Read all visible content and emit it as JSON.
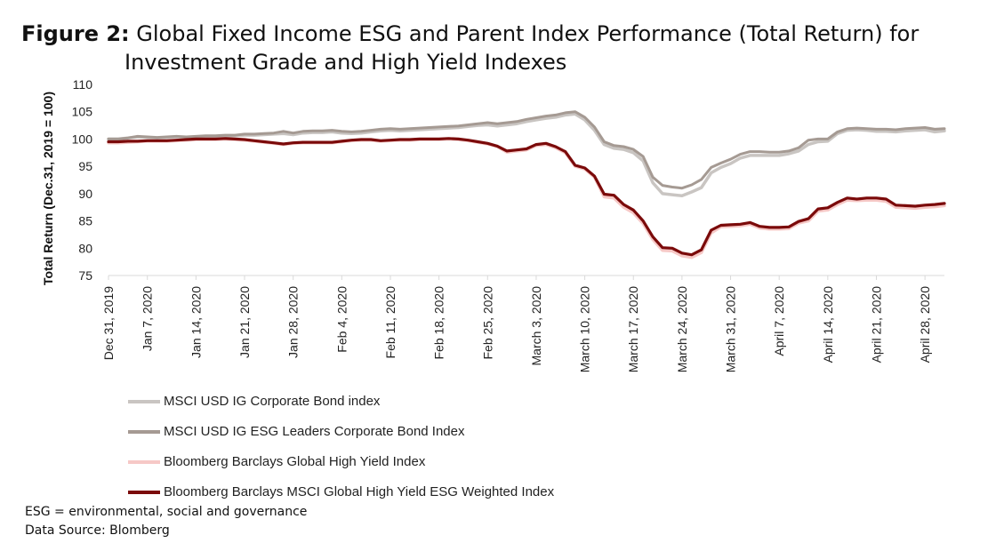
{
  "figure": {
    "label": "Figure 2:",
    "title_line1": " Global Fixed Income ESG and Parent Index Performance (Total Return) for",
    "title_line2": "Investment Grade and High Yield Indexes"
  },
  "footnotes": {
    "esg": "ESG = environmental, social and governance",
    "source": "Data Source: Blomberg"
  },
  "chart_data": {
    "type": "line",
    "ylabel": "Total Return (Dec.31, 2019 = 100)",
    "xlabel": "",
    "ylim": [
      75,
      110
    ],
    "yticks": [
      75,
      80,
      85,
      90,
      95,
      100,
      105,
      110
    ],
    "grid": false,
    "legend_position": "bottom-left",
    "x_tick_labels": [
      "Dec 31, 2019",
      "Jan 7, 2020",
      "Jan 14, 2020",
      "Jan 21, 2020",
      "Jan 28, 2020",
      "Feb 4, 2020",
      "Feb 11, 2020",
      "Feb 18, 2020",
      "Feb 25, 2020",
      "March 3, 2020",
      "March 10, 2020",
      "March 17, 2020",
      "March 24, 2020",
      "March 31, 2020",
      "April 7, 2020",
      "April 14, 2020",
      "April 21, 2020",
      "April 28, 2020"
    ],
    "x": [
      "Dec 31, 2019",
      "Jan 1, 2020",
      "Jan 3, 2020",
      "Jan 6, 2020",
      "Jan 7, 2020",
      "Jan 8, 2020",
      "Jan 9, 2020",
      "Jan 10, 2020",
      "Jan 13, 2020",
      "Jan 14, 2020",
      "Jan 15, 2020",
      "Jan 16, 2020",
      "Jan 17, 2020",
      "Jan 20, 2020",
      "Jan 21, 2020",
      "Jan 22, 2020",
      "Jan 23, 2020",
      "Jan 24, 2020",
      "Jan 27, 2020",
      "Jan 28, 2020",
      "Jan 29, 2020",
      "Jan 30, 2020",
      "Jan 31, 2020",
      "Feb 3, 2020",
      "Feb 4, 2020",
      "Feb 5, 2020",
      "Feb 6, 2020",
      "Feb 7, 2020",
      "Feb 10, 2020",
      "Feb 11, 2020",
      "Feb 12, 2020",
      "Feb 13, 2020",
      "Feb 14, 2020",
      "Feb 17, 2020",
      "Feb 18, 2020",
      "Feb 19, 2020",
      "Feb 20, 2020",
      "Feb 21, 2020",
      "Feb 24, 2020",
      "Feb 25, 2020",
      "Feb 26, 2020",
      "Feb 27, 2020",
      "Feb 28, 2020",
      "March 2, 2020",
      "March 3, 2020",
      "March 4, 2020",
      "March 5, 2020",
      "March 6, 2020",
      "March 9, 2020",
      "March 10, 2020",
      "March 11, 2020",
      "March 12, 2020",
      "March 13, 2020",
      "March 16, 2020",
      "March 17, 2020",
      "March 18, 2020",
      "March 19, 2020",
      "March 20, 2020",
      "March 23, 2020",
      "March 24, 2020",
      "March 25, 2020",
      "March 26, 2020",
      "March 27, 2020",
      "March 30, 2020",
      "March 31, 2020",
      "April 1, 2020",
      "April 2, 2020",
      "April 3, 2020",
      "April 6, 2020",
      "April 7, 2020",
      "April 8, 2020",
      "April 9, 2020",
      "April 10, 2020",
      "April 13, 2020",
      "April 14, 2020",
      "April 15, 2020",
      "April 16, 2020",
      "April 17, 2020",
      "April 20, 2020",
      "April 21, 2020",
      "April 22, 2020",
      "April 23, 2020",
      "April 24, 2020",
      "April 27, 2020",
      "April 28, 2020",
      "April 29, 2020",
      "April 30, 2020"
    ],
    "series": [
      {
        "name": "MSCI USD IG Corporate Bond index",
        "color": "#c9c5c2",
        "values": [
          100.0,
          100.0,
          100.2,
          100.4,
          100.3,
          100.2,
          100.3,
          100.4,
          100.3,
          100.4,
          100.5,
          100.5,
          100.6,
          100.6,
          100.7,
          100.7,
          100.8,
          100.9,
          101.0,
          100.8,
          101.1,
          101.2,
          101.2,
          101.3,
          101.1,
          101.0,
          101.1,
          101.3,
          101.5,
          101.6,
          101.5,
          101.6,
          101.7,
          101.8,
          101.9,
          102.0,
          102.1,
          102.3,
          102.5,
          102.6,
          102.4,
          102.6,
          102.8,
          103.2,
          103.5,
          103.8,
          104.0,
          104.4,
          104.6,
          103.5,
          101.6,
          99.0,
          98.3,
          98.1,
          97.5,
          96.0,
          92.0,
          90.0,
          89.8,
          89.6,
          90.3,
          91.1,
          93.8,
          94.8,
          95.5,
          96.5,
          97.0,
          97.0,
          97.0,
          97.0,
          97.3,
          97.8,
          99.0,
          99.5,
          99.6,
          101.0,
          101.6,
          101.7,
          101.6,
          101.4,
          101.4,
          101.3,
          101.5,
          101.6,
          101.7,
          101.3,
          101.5
        ]
      },
      {
        "name": "MSCI USD IG ESG Leaders Corporate Bond Index",
        "color": "#a59a93",
        "values": [
          100.0,
          100.0,
          100.2,
          100.5,
          100.4,
          100.3,
          100.4,
          100.5,
          100.4,
          100.5,
          100.6,
          100.6,
          100.7,
          100.7,
          100.9,
          100.9,
          101.0,
          101.1,
          101.4,
          101.1,
          101.4,
          101.5,
          101.5,
          101.6,
          101.4,
          101.3,
          101.4,
          101.6,
          101.8,
          101.9,
          101.8,
          101.9,
          102.0,
          102.1,
          102.2,
          102.3,
          102.4,
          102.6,
          102.8,
          103.0,
          102.8,
          103.0,
          103.2,
          103.6,
          103.9,
          104.2,
          104.4,
          104.8,
          105.0,
          104.0,
          102.2,
          99.5,
          98.8,
          98.6,
          98.1,
          96.8,
          93.0,
          91.5,
          91.2,
          91.0,
          91.6,
          92.6,
          94.8,
          95.6,
          96.3,
          97.2,
          97.7,
          97.7,
          97.6,
          97.6,
          97.8,
          98.4,
          99.8,
          100.0,
          100.0,
          101.3,
          101.9,
          102.0,
          101.9,
          101.8,
          101.8,
          101.7,
          101.9,
          102.0,
          102.1,
          101.8,
          101.9
        ]
      },
      {
        "name": "Bloomberg Barclays Global High Yield Index",
        "color": "#f6c8c6",
        "values": [
          99.3,
          99.3,
          99.4,
          99.5,
          99.6,
          99.6,
          99.6,
          99.7,
          99.8,
          99.9,
          99.9,
          99.9,
          100.0,
          99.9,
          99.8,
          99.6,
          99.4,
          99.2,
          99.0,
          99.2,
          99.3,
          99.3,
          99.3,
          99.3,
          99.5,
          99.7,
          99.8,
          99.8,
          99.6,
          99.7,
          99.8,
          99.8,
          99.9,
          99.9,
          99.9,
          100.0,
          99.9,
          99.7,
          99.4,
          99.1,
          98.6,
          97.6,
          97.8,
          98.0,
          98.8,
          99.0,
          98.4,
          97.5,
          95.0,
          94.5,
          93.0,
          89.4,
          89.2,
          87.5,
          86.5,
          84.5,
          81.6,
          79.6,
          79.5,
          78.6,
          78.3,
          79.2,
          82.8,
          83.9,
          84.0,
          84.1,
          84.4,
          83.7,
          83.5,
          83.5,
          83.6,
          84.6,
          85.0,
          86.8,
          87.0,
          88.0,
          88.8,
          88.7,
          88.8,
          88.8,
          88.6,
          87.5,
          87.4,
          87.3,
          87.5,
          87.6,
          87.8
        ]
      },
      {
        "name": "Bloomberg Barclays MSCI Global High Yield ESG Weighted Index",
        "color": "#7b0a0a",
        "values": [
          99.5,
          99.5,
          99.6,
          99.6,
          99.7,
          99.7,
          99.7,
          99.8,
          99.9,
          100.0,
          100.0,
          100.0,
          100.1,
          100.0,
          99.9,
          99.7,
          99.5,
          99.3,
          99.1,
          99.3,
          99.4,
          99.4,
          99.4,
          99.4,
          99.6,
          99.8,
          99.9,
          99.9,
          99.7,
          99.8,
          99.9,
          99.9,
          100.0,
          100.0,
          100.0,
          100.1,
          100.0,
          99.8,
          99.5,
          99.2,
          98.7,
          97.8,
          98.0,
          98.2,
          99.0,
          99.2,
          98.6,
          97.7,
          95.2,
          94.7,
          93.2,
          89.9,
          89.7,
          88.0,
          87.0,
          85.0,
          82.1,
          80.1,
          80.0,
          79.1,
          78.8,
          79.7,
          83.3,
          84.2,
          84.3,
          84.4,
          84.7,
          84.0,
          83.8,
          83.8,
          83.9,
          84.9,
          85.4,
          87.2,
          87.4,
          88.4,
          89.2,
          89.0,
          89.2,
          89.2,
          89.0,
          87.9,
          87.8,
          87.7,
          87.9,
          88.0,
          88.2
        ]
      }
    ]
  }
}
